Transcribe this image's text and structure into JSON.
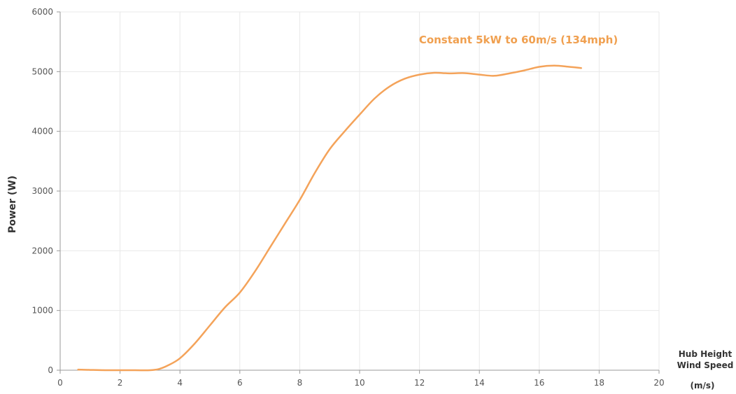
{
  "chart_data": {
    "type": "line",
    "title": "",
    "xlabel_lines": [
      "Hub Height",
      "Wind Speed"
    ],
    "xlabel_unit": "(m/s)",
    "ylabel": "Power (W)",
    "xlim": [
      0,
      20
    ],
    "ylim": [
      0,
      6000
    ],
    "x_ticks": [
      0,
      2,
      4,
      6,
      8,
      10,
      12,
      14,
      16,
      18,
      20
    ],
    "y_ticks": [
      0,
      1000,
      2000,
      3000,
      4000,
      5000,
      6000
    ],
    "grid": true,
    "annotation": "Constant 5kW to 60m/s (134mph)",
    "colors": {
      "line": "#f4a35a",
      "annotation": "#f0a050",
      "grid": "#e8e8e8",
      "axis": "#999999"
    },
    "series": [
      {
        "x": [
          0.6,
          1.0,
          1.5,
          2.0,
          2.5,
          3.0,
          3.3,
          3.6,
          4.0,
          4.5,
          5.0,
          5.5,
          6.0,
          6.5,
          7.0,
          7.5,
          8.0,
          8.5,
          9.0,
          9.5,
          10.0,
          10.5,
          11.0,
          11.5,
          12.0,
          12.5,
          13.0,
          13.5,
          14.0,
          14.5,
          15.0,
          15.5,
          16.0,
          16.5,
          17.0,
          17.4
        ],
        "y": [
          10,
          5,
          0,
          0,
          0,
          0,
          20,
          80,
          200,
          450,
          750,
          1050,
          1300,
          1650,
          2050,
          2450,
          2850,
          3300,
          3700,
          4000,
          4280,
          4550,
          4750,
          4880,
          4950,
          4980,
          4970,
          4975,
          4950,
          4930,
          4970,
          5020,
          5080,
          5100,
          5080,
          5060
        ]
      }
    ]
  }
}
